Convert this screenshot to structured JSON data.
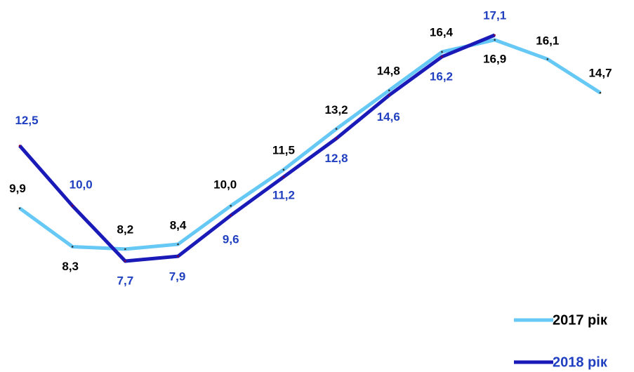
{
  "chart_data": {
    "type": "line",
    "categories": [
      null,
      null,
      null,
      null,
      null,
      null,
      null,
      null,
      null,
      null,
      null,
      null
    ],
    "series": [
      {
        "name": "2017 рік",
        "color": "#66c8f5",
        "label_color": "#000000",
        "values": [
          9.9,
          8.3,
          8.2,
          8.4,
          10.0,
          11.5,
          13.2,
          14.8,
          16.4,
          16.9,
          16.1,
          14.7
        ],
        "value_labels": [
          "9,9",
          "8,3",
          "8,2",
          "8,4",
          "10,0",
          "11,5",
          "13,2",
          "14,8",
          "16,4",
          "16,9",
          "16,1",
          "14,7"
        ]
      },
      {
        "name": "2018 рік",
        "color": "#1a1ab8",
        "label_color": "#2040c0",
        "values": [
          12.5,
          10.0,
          7.7,
          7.9,
          9.6,
          11.2,
          12.8,
          14.6,
          16.2,
          17.1,
          null,
          null
        ],
        "value_labels": [
          "12,5",
          "10,0",
          "7,7",
          "7,9",
          "9,6",
          "11,2",
          "12,8",
          "14,6",
          "16,2",
          "17,1",
          null,
          null
        ]
      }
    ],
    "legend": "bottom-right"
  }
}
